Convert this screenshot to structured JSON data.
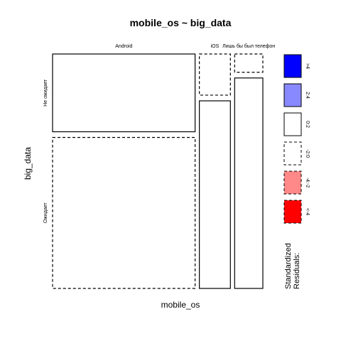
{
  "chart_data": {
    "type": "mosaic",
    "title": "mobile_os ~ big_data",
    "xlabel": "mobile_os",
    "ylabel": "big_data",
    "x_categories": [
      "Android",
      "iOS",
      "Лишь бы был телефон"
    ],
    "y_categories": [
      "Не ожидает",
      "Ожидает"
    ],
    "cells": [
      {
        "x": "Android",
        "y": "Не ожидает",
        "proportion": 0.34,
        "style": "solid"
      },
      {
        "x": "Android",
        "y": "Ожидает",
        "proportion": 0.66,
        "style": "dashed"
      },
      {
        "x": "iOS",
        "y": "Не ожидает",
        "proportion": 0.18,
        "style": "dashed"
      },
      {
        "x": "iOS",
        "y": "Ожидает",
        "proportion": 0.82,
        "style": "solid"
      },
      {
        "x": "Лишь бы был телефон",
        "y": "Не ожидает",
        "proportion": 0.08,
        "style": "dashed"
      },
      {
        "x": "Лишь бы был телефон",
        "y": "Ожидает",
        "proportion": 0.92,
        "style": "solid"
      }
    ],
    "column_widths": [
      0.758,
      0.165,
      0.15
    ],
    "legend": {
      "title": "Standardized Residuals:",
      "entries": [
        {
          "label": ">4",
          "fill": "#0000ff",
          "style": "solid"
        },
        {
          "label": "2:4",
          "fill": "#8888ff",
          "style": "solid"
        },
        {
          "label": "0:2",
          "fill": "#ffffff",
          "style": "solid"
        },
        {
          "label": "-2:0",
          "fill": "#ffffff",
          "style": "dashed"
        },
        {
          "label": "-4:-2",
          "fill": "#ff8888",
          "style": "dashed"
        },
        {
          "label": "<-4",
          "fill": "#ff0000",
          "style": "dashed"
        }
      ]
    }
  }
}
